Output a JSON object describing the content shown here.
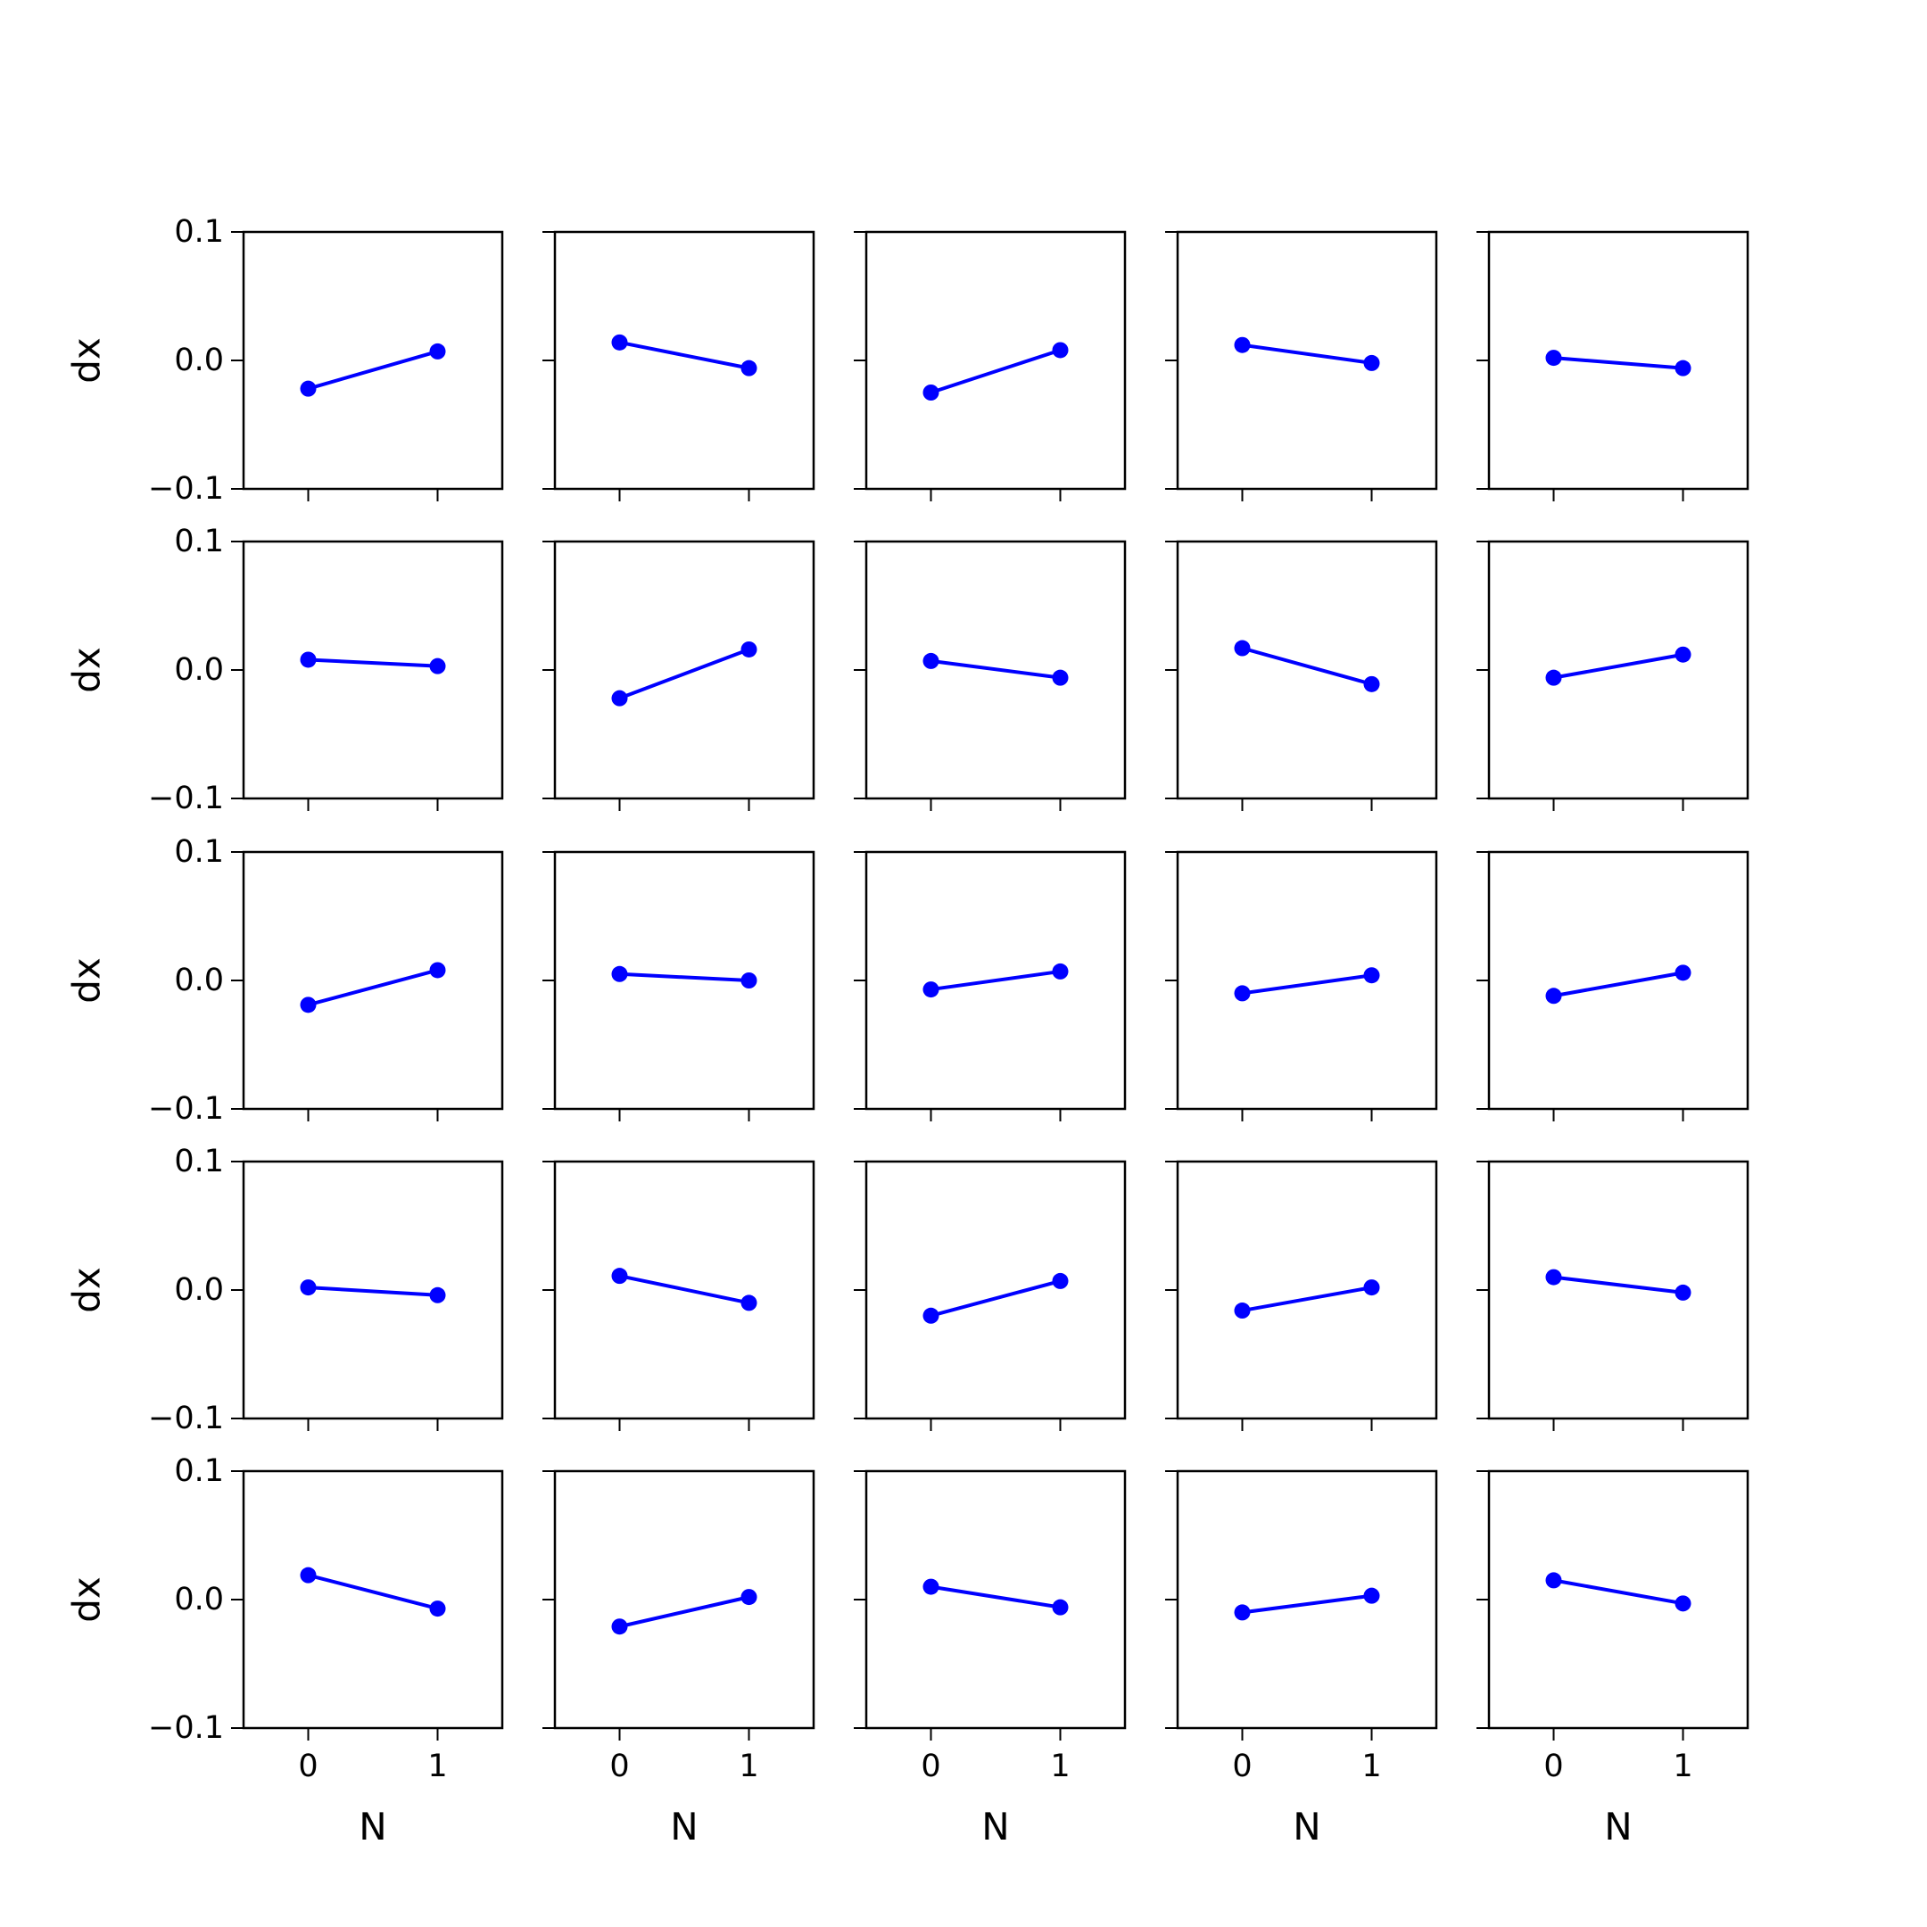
{
  "chart_data": {
    "type": "line",
    "layout": {
      "rows": 5,
      "cols": 5
    },
    "xlabel": "N",
    "ylabel": "dx",
    "x": [
      0,
      1
    ],
    "xticks": [
      "0",
      "1"
    ],
    "xlim": [
      -0.5,
      1.5
    ],
    "ylim": [
      -0.1,
      0.1
    ],
    "yticks": [
      "0.1",
      "0.0",
      "−0.1"
    ],
    "ytick_values": [
      0.1,
      0.0,
      -0.1
    ],
    "grid": false,
    "legend": "none",
    "line_color": "#0000ff",
    "panels": [
      {
        "y": [
          -0.022,
          0.007
        ]
      },
      {
        "y": [
          0.014,
          -0.006
        ]
      },
      {
        "y": [
          -0.025,
          0.008
        ]
      },
      {
        "y": [
          0.012,
          -0.002
        ]
      },
      {
        "y": [
          0.002,
          -0.006
        ]
      },
      {
        "y": [
          0.008,
          0.003
        ]
      },
      {
        "y": [
          -0.022,
          0.016
        ]
      },
      {
        "y": [
          0.007,
          -0.006
        ]
      },
      {
        "y": [
          0.017,
          -0.011
        ]
      },
      {
        "y": [
          -0.006,
          0.012
        ]
      },
      {
        "y": [
          -0.019,
          0.008
        ]
      },
      {
        "y": [
          0.005,
          0.0
        ]
      },
      {
        "y": [
          -0.007,
          0.007
        ]
      },
      {
        "y": [
          -0.01,
          0.004
        ]
      },
      {
        "y": [
          -0.012,
          0.006
        ]
      },
      {
        "y": [
          0.002,
          -0.004
        ]
      },
      {
        "y": [
          0.011,
          -0.01
        ]
      },
      {
        "y": [
          -0.02,
          0.007
        ]
      },
      {
        "y": [
          -0.016,
          0.002
        ]
      },
      {
        "y": [
          0.01,
          -0.002
        ]
      },
      {
        "y": [
          0.019,
          -0.007
        ]
      },
      {
        "y": [
          -0.021,
          0.002
        ]
      },
      {
        "y": [
          0.01,
          -0.006
        ]
      },
      {
        "y": [
          -0.01,
          0.003
        ]
      },
      {
        "y": [
          0.015,
          -0.003
        ]
      }
    ]
  }
}
